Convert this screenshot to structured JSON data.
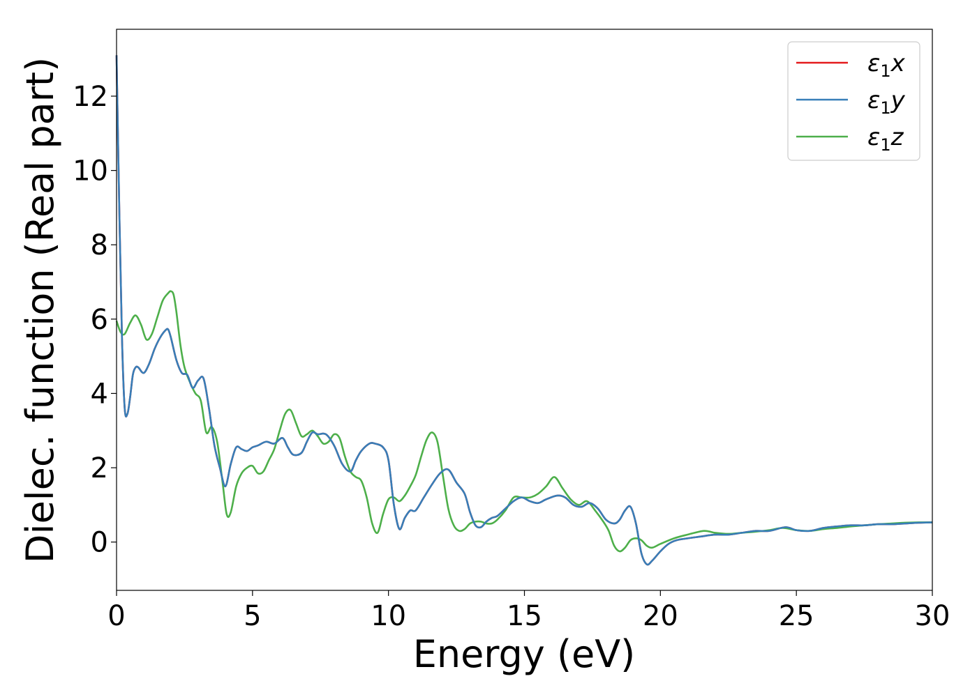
{
  "chart_data": {
    "type": "line",
    "title": "",
    "xlabel": "Energy (eV)",
    "ylabel": "Dielec. function (Real part)",
    "xlim": [
      0,
      30
    ],
    "ylim": [
      -1.3,
      13.8
    ],
    "xticks": [
      0,
      5,
      10,
      15,
      20,
      25,
      30
    ],
    "yticks": [
      0,
      2,
      4,
      6,
      8,
      10,
      12
    ],
    "grid": false,
    "legend_position": "top-right",
    "series": [
      {
        "name": "ε₁x",
        "legend_base": "ε",
        "legend_sub": "1",
        "legend_suffix": "x",
        "color": "#e41a1c",
        "x": [
          0,
          0.1,
          0.2,
          0.3,
          0.4,
          0.5,
          0.6,
          0.7,
          0.8,
          1.0,
          1.2,
          1.4,
          1.6,
          1.8,
          1.9,
          2.0,
          2.2,
          2.4,
          2.6,
          2.8,
          3.0,
          3.2,
          3.4,
          3.6,
          3.8,
          4.0,
          4.2,
          4.4,
          4.6,
          4.8,
          5.0,
          5.2,
          5.5,
          5.8,
          6.1,
          6.3,
          6.5,
          6.8,
          7.0,
          7.2,
          7.4,
          7.7,
          8.0,
          8.3,
          8.6,
          8.8,
          9.0,
          9.3,
          9.5,
          9.8,
          10.0,
          10.2,
          10.4,
          10.6,
          10.8,
          11.0,
          11.3,
          11.6,
          11.9,
          12.2,
          12.5,
          12.8,
          13.0,
          13.2,
          13.4,
          13.6,
          13.8,
          14.0,
          14.3,
          14.6,
          14.9,
          15.2,
          15.5,
          15.8,
          16.2,
          16.5,
          16.8,
          17.1,
          17.4,
          17.7,
          18.0,
          18.3,
          18.5,
          18.7,
          18.9,
          19.1,
          19.3,
          19.5,
          19.7,
          20.0,
          20.3,
          20.6,
          21.0,
          21.5,
          22.0,
          22.5,
          23.0,
          23.5,
          24.0,
          24.6,
          25.0,
          25.5,
          26.0,
          26.5,
          27.0,
          27.5,
          28.0,
          28.5,
          29.0,
          29.5,
          30.0
        ],
        "y": [
          13.1,
          9.0,
          5.5,
          3.6,
          3.45,
          3.9,
          4.5,
          4.7,
          4.7,
          4.55,
          4.8,
          5.2,
          5.5,
          5.7,
          5.72,
          5.5,
          4.9,
          4.55,
          4.5,
          4.15,
          4.35,
          4.4,
          3.6,
          2.6,
          2.0,
          1.5,
          2.1,
          2.55,
          2.5,
          2.45,
          2.55,
          2.6,
          2.7,
          2.65,
          2.8,
          2.55,
          2.35,
          2.4,
          2.7,
          2.95,
          2.9,
          2.9,
          2.6,
          2.1,
          1.9,
          2.2,
          2.45,
          2.65,
          2.65,
          2.55,
          2.2,
          1.0,
          0.35,
          0.65,
          0.85,
          0.85,
          1.2,
          1.55,
          1.85,
          1.95,
          1.6,
          1.3,
          0.8,
          0.45,
          0.4,
          0.55,
          0.65,
          0.7,
          0.9,
          1.1,
          1.2,
          1.1,
          1.05,
          1.15,
          1.25,
          1.2,
          1.0,
          0.95,
          1.05,
          0.9,
          0.6,
          0.5,
          0.6,
          0.85,
          0.95,
          0.5,
          -0.3,
          -0.6,
          -0.5,
          -0.25,
          -0.05,
          0.05,
          0.1,
          0.15,
          0.2,
          0.2,
          0.25,
          0.3,
          0.3,
          0.4,
          0.32,
          0.3,
          0.38,
          0.42,
          0.45,
          0.45,
          0.48,
          0.48,
          0.5,
          0.52,
          0.53
        ]
      },
      {
        "name": "ε₁y",
        "legend_base": "ε",
        "legend_sub": "1",
        "legend_suffix": "y",
        "color": "#377eb8",
        "x": [
          0,
          0.1,
          0.2,
          0.3,
          0.4,
          0.5,
          0.6,
          0.7,
          0.8,
          1.0,
          1.2,
          1.4,
          1.6,
          1.8,
          1.9,
          2.0,
          2.2,
          2.4,
          2.6,
          2.8,
          3.0,
          3.2,
          3.4,
          3.6,
          3.8,
          4.0,
          4.2,
          4.4,
          4.6,
          4.8,
          5.0,
          5.2,
          5.5,
          5.8,
          6.1,
          6.3,
          6.5,
          6.8,
          7.0,
          7.2,
          7.4,
          7.7,
          8.0,
          8.3,
          8.6,
          8.8,
          9.0,
          9.3,
          9.5,
          9.8,
          10.0,
          10.2,
          10.4,
          10.6,
          10.8,
          11.0,
          11.3,
          11.6,
          11.9,
          12.2,
          12.5,
          12.8,
          13.0,
          13.2,
          13.4,
          13.6,
          13.8,
          14.0,
          14.3,
          14.6,
          14.9,
          15.2,
          15.5,
          15.8,
          16.2,
          16.5,
          16.8,
          17.1,
          17.4,
          17.7,
          18.0,
          18.3,
          18.5,
          18.7,
          18.9,
          19.1,
          19.3,
          19.5,
          19.7,
          20.0,
          20.3,
          20.6,
          21.0,
          21.5,
          22.0,
          22.5,
          23.0,
          23.5,
          24.0,
          24.6,
          25.0,
          25.5,
          26.0,
          26.5,
          27.0,
          27.5,
          28.0,
          28.5,
          29.0,
          29.5,
          30.0
        ],
        "y": [
          13.1,
          9.0,
          5.5,
          3.6,
          3.45,
          3.9,
          4.5,
          4.7,
          4.7,
          4.55,
          4.8,
          5.2,
          5.5,
          5.7,
          5.72,
          5.5,
          4.9,
          4.55,
          4.5,
          4.15,
          4.35,
          4.4,
          3.6,
          2.6,
          2.0,
          1.5,
          2.1,
          2.55,
          2.5,
          2.45,
          2.55,
          2.6,
          2.7,
          2.65,
          2.8,
          2.55,
          2.35,
          2.4,
          2.7,
          2.95,
          2.9,
          2.9,
          2.6,
          2.1,
          1.9,
          2.2,
          2.45,
          2.65,
          2.65,
          2.55,
          2.2,
          1.0,
          0.35,
          0.65,
          0.85,
          0.85,
          1.2,
          1.55,
          1.85,
          1.95,
          1.6,
          1.3,
          0.8,
          0.45,
          0.4,
          0.55,
          0.65,
          0.7,
          0.9,
          1.1,
          1.2,
          1.1,
          1.05,
          1.15,
          1.25,
          1.2,
          1.0,
          0.95,
          1.05,
          0.9,
          0.6,
          0.5,
          0.6,
          0.85,
          0.95,
          0.5,
          -0.3,
          -0.6,
          -0.5,
          -0.25,
          -0.05,
          0.05,
          0.1,
          0.15,
          0.2,
          0.2,
          0.25,
          0.3,
          0.3,
          0.4,
          0.32,
          0.3,
          0.38,
          0.42,
          0.45,
          0.45,
          0.48,
          0.48,
          0.5,
          0.52,
          0.53
        ]
      },
      {
        "name": "ε₁z",
        "legend_base": "ε",
        "legend_sub": "1",
        "legend_suffix": "z",
        "color": "#4daf4a",
        "x": [
          0,
          0.15,
          0.3,
          0.5,
          0.7,
          0.9,
          1.1,
          1.3,
          1.5,
          1.7,
          1.9,
          2.0,
          2.1,
          2.2,
          2.35,
          2.5,
          2.7,
          2.9,
          3.1,
          3.3,
          3.5,
          3.7,
          3.9,
          4.05,
          4.2,
          4.4,
          4.6,
          4.8,
          5.0,
          5.2,
          5.4,
          5.6,
          5.8,
          6.0,
          6.2,
          6.4,
          6.6,
          6.8,
          7.0,
          7.2,
          7.4,
          7.6,
          7.8,
          8.0,
          8.2,
          8.4,
          8.6,
          8.8,
          9.0,
          9.2,
          9.4,
          9.6,
          9.8,
          10.0,
          10.2,
          10.4,
          10.6,
          10.8,
          11.0,
          11.2,
          11.4,
          11.6,
          11.8,
          12.0,
          12.2,
          12.4,
          12.6,
          12.8,
          13.0,
          13.2,
          13.4,
          13.6,
          13.8,
          14.0,
          14.3,
          14.6,
          14.9,
          15.2,
          15.5,
          15.8,
          16.1,
          16.4,
          16.7,
          17.0,
          17.3,
          17.6,
          17.9,
          18.1,
          18.3,
          18.5,
          18.7,
          18.9,
          19.1,
          19.3,
          19.5,
          19.7,
          20.0,
          20.5,
          21.0,
          21.6,
          22.0,
          22.5,
          23.0,
          23.5,
          24.0,
          24.5,
          25.0,
          25.5,
          26.0,
          26.5,
          27.0,
          27.5,
          28.0,
          28.5,
          29.0,
          29.5,
          30.0
        ],
        "y": [
          5.95,
          5.65,
          5.6,
          5.9,
          6.1,
          5.85,
          5.45,
          5.6,
          6.05,
          6.5,
          6.7,
          6.75,
          6.65,
          6.2,
          5.3,
          4.7,
          4.3,
          4.0,
          3.8,
          2.95,
          3.1,
          2.7,
          1.6,
          0.75,
          0.8,
          1.5,
          1.85,
          2.0,
          2.05,
          1.85,
          1.9,
          2.2,
          2.5,
          3.0,
          3.45,
          3.55,
          3.2,
          2.85,
          2.9,
          3.0,
          2.85,
          2.65,
          2.7,
          2.9,
          2.8,
          2.3,
          1.9,
          1.75,
          1.65,
          1.2,
          0.5,
          0.25,
          0.75,
          1.15,
          1.2,
          1.1,
          1.25,
          1.5,
          1.8,
          2.3,
          2.75,
          2.95,
          2.7,
          1.8,
          0.9,
          0.45,
          0.3,
          0.35,
          0.5,
          0.55,
          0.55,
          0.5,
          0.5,
          0.6,
          0.85,
          1.2,
          1.2,
          1.2,
          1.3,
          1.5,
          1.75,
          1.45,
          1.15,
          1.0,
          1.1,
          0.85,
          0.55,
          0.3,
          -0.1,
          -0.25,
          -0.15,
          0.05,
          0.1,
          0.05,
          -0.1,
          -0.15,
          -0.05,
          0.1,
          0.2,
          0.3,
          0.25,
          0.22,
          0.25,
          0.28,
          0.32,
          0.38,
          0.32,
          0.3,
          0.35,
          0.38,
          0.42,
          0.45,
          0.48,
          0.5,
          0.52,
          0.53,
          0.53
        ]
      }
    ]
  }
}
